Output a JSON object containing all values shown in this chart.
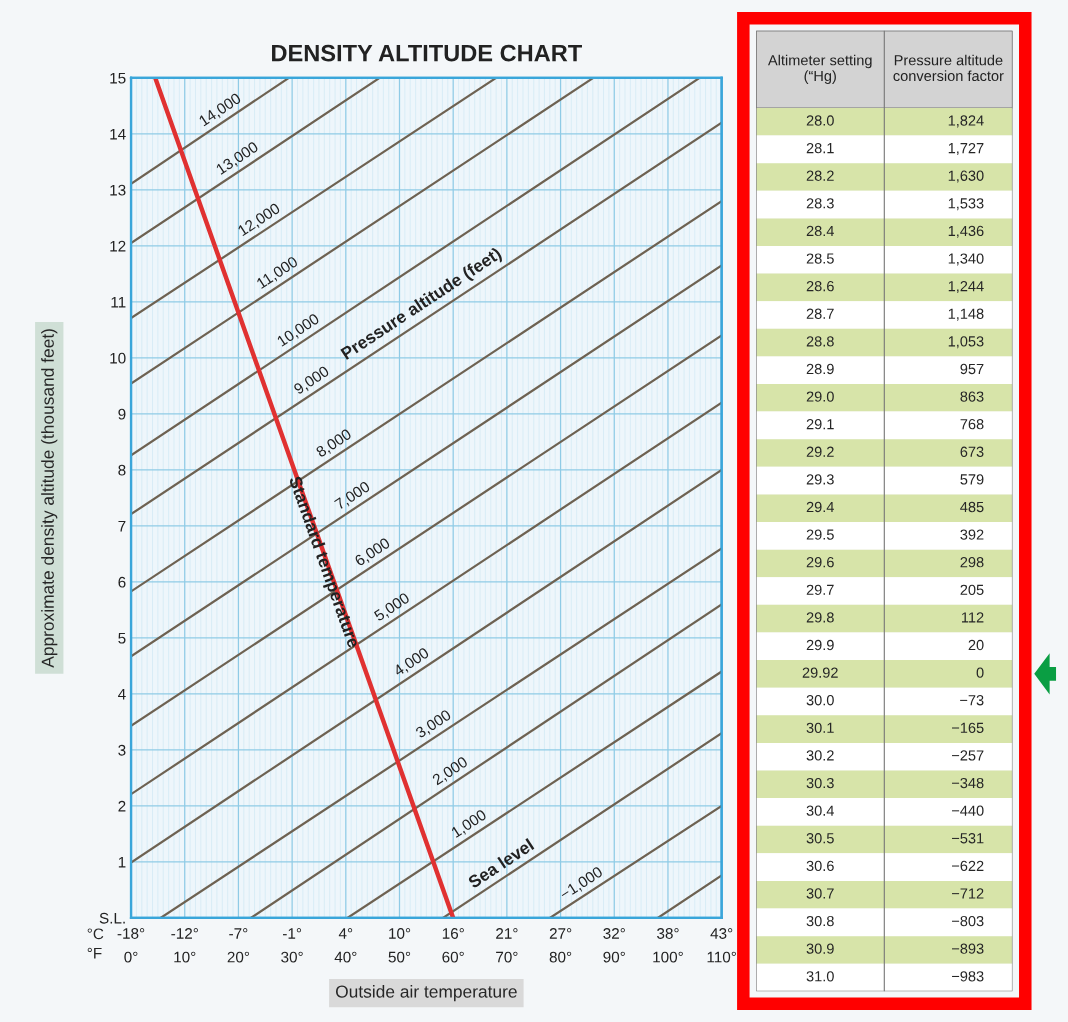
{
  "chart_data": [
    {
      "type": "line",
      "title": "DENSITY ALTITUDE CHART",
      "xlabel": "Outside air temperature",
      "ylabel": "Approximate density altitude (thousand feet)",
      "xlim": [
        0,
        110
      ],
      "ylim": [
        0,
        15
      ],
      "xticks": [
        {
          "value": 0,
          "label": "0°"
        },
        {
          "value": 10,
          "label": "10°"
        },
        {
          "value": 20,
          "label": "20°"
        },
        {
          "value": 30,
          "label": "30°"
        },
        {
          "value": 40,
          "label": "40°"
        },
        {
          "value": 50,
          "label": "50°"
        },
        {
          "value": 60,
          "label": "60°"
        },
        {
          "value": 70,
          "label": "70°"
        },
        {
          "value": 80,
          "label": "80°"
        },
        {
          "value": 90,
          "label": "90°"
        },
        {
          "value": 100,
          "label": "100°"
        },
        {
          "value": 110,
          "label": "110°"
        }
      ],
      "x2lim": [
        -17.78,
        43.33
      ],
      "x2ticks": [
        {
          "value": -17.78,
          "label": "-18°"
        },
        {
          "value": -12.22,
          "label": "-12°"
        },
        {
          "value": -6.67,
          "label": "-7°"
        },
        {
          "value": -1.11,
          "label": "-1°"
        },
        {
          "value": 4.44,
          "label": "4°"
        },
        {
          "value": 10,
          "label": "10°"
        },
        {
          "value": 15.56,
          "label": "16°"
        },
        {
          "value": 21.11,
          "label": "21°"
        },
        {
          "value": 26.67,
          "label": "27°"
        },
        {
          "value": 32.22,
          "label": "32°"
        },
        {
          "value": 37.78,
          "label": "38°"
        },
        {
          "value": 43.33,
          "label": "43°"
        }
      ],
      "yticks": [
        {
          "value": 0,
          "label": "S.L."
        },
        1,
        2,
        3,
        4,
        5,
        6,
        7,
        8,
        9,
        10,
        11,
        12,
        13,
        14,
        15
      ],
      "grid": true,
      "legend": false,
      "marker": "none",
      "line_style": "solid",
      "annotations": [
        "Pressure altitude (feet)",
        "°C",
        "°F"
      ],
      "series": [
        {
          "name": "14,000",
          "color": "#6e6252",
          "x": [
            0,
            29.4
          ],
          "values": [
            13.11,
            15
          ]
        },
        {
          "name": "13,000",
          "color": "#6e6252",
          "x": [
            0,
            46.3
          ],
          "values": [
            12.05,
            15
          ]
        },
        {
          "name": "12,000",
          "color": "#6e6252",
          "x": [
            0,
            68
          ],
          "values": [
            10.71,
            15
          ]
        },
        {
          "name": "11,000",
          "color": "#6e6252",
          "x": [
            0,
            86.1
          ],
          "values": [
            9.54,
            15
          ]
        },
        {
          "name": "10,000",
          "color": "#6e6252",
          "x": [
            0,
            105.9
          ],
          "values": [
            8.26,
            15
          ]
        },
        {
          "name": "9,000",
          "color": "#6e6252",
          "x": [
            0,
            110
          ],
          "values": [
            7.21,
            14.2
          ]
        },
        {
          "name": "8,000",
          "color": "#6e6252",
          "x": [
            0,
            110
          ],
          "values": [
            5.83,
            12.8
          ]
        },
        {
          "name": "7,000",
          "color": "#6e6252",
          "x": [
            0,
            110
          ],
          "values": [
            4.67,
            11.65
          ]
        },
        {
          "name": "6,000",
          "color": "#6e6252",
          "x": [
            0,
            110
          ],
          "values": [
            3.43,
            10.4
          ]
        },
        {
          "name": "5,000",
          "color": "#6e6252",
          "x": [
            0,
            110
          ],
          "values": [
            2.21,
            9.2
          ]
        },
        {
          "name": "4,000",
          "color": "#6e6252",
          "x": [
            0,
            110
          ],
          "values": [
            0.99,
            8.0
          ]
        },
        {
          "name": "3,000",
          "color": "#6e6252",
          "x": [
            5.5,
            110
          ],
          "values": [
            0,
            6.6
          ]
        },
        {
          "name": "2,000",
          "color": "#6e6252",
          "x": [
            22.3,
            110
          ],
          "values": [
            0,
            5.6
          ]
        },
        {
          "name": "1,000",
          "color": "#6e6252",
          "x": [
            40.3,
            110
          ],
          "values": [
            0,
            4.4
          ]
        },
        {
          "name": "Sea level",
          "color": "#6e6252",
          "x": [
            58.1,
            110
          ],
          "values": [
            0,
            3.3
          ]
        },
        {
          "name": "−1,000",
          "color": "#6e6252",
          "x": [
            78,
            110
          ],
          "values": [
            0,
            2.0
          ]
        },
        {
          "color": "#6e6252",
          "x": [
            98.1,
            110
          ],
          "values": [
            0,
            0.76
          ]
        },
        {
          "name": "Standard temperature",
          "color": "#e03131",
          "x": [
            4.5,
            60
          ],
          "values": [
            15,
            0
          ]
        }
      ]
    },
    {
      "type": "other",
      "annotations": [
        "Altimeter setting\n(“Hg)",
        "Pressure altitude\nconversion factor"
      ],
      "categories": [
        "28.0",
        "28.1",
        "28.2",
        "28.3",
        "28.4",
        "28.5",
        "28.6",
        "28.7",
        "28.8",
        "28.9",
        "29.0",
        "29.1",
        "29.2",
        "29.3",
        "29.4",
        "29.5",
        "29.6",
        "29.7",
        "29.8",
        "29.9",
        "29.92",
        "30.0",
        "30.1",
        "30.2",
        "30.3",
        "30.4",
        "30.5",
        "30.6",
        "30.7",
        "30.8",
        "30.9",
        "31.0"
      ],
      "values": [
        1824,
        1727,
        1630,
        1533,
        1436,
        1340,
        1244,
        1148,
        1053,
        957,
        863,
        768,
        673,
        579,
        485,
        392,
        298,
        205,
        112,
        20,
        0,
        -73,
        -165,
        -257,
        -348,
        -440,
        -531,
        -622,
        -712,
        -803,
        -893,
        -983
      ],
      "value_labels": [
        "1,824",
        "1,727",
        "1,630",
        "1,533",
        "1,436",
        "1,340",
        "1,244",
        "1,148",
        "1,053",
        "957",
        "863",
        "768",
        "673",
        "579",
        "485",
        "392",
        "298",
        "205",
        "112",
        "20",
        "0",
        "−73",
        "−165",
        "−257",
        "−348",
        "−440",
        "−531",
        "−622",
        "−712",
        "−803",
        "−893",
        "−983"
      ],
      "colors": [
        "#d7e4a9",
        "#ffffff",
        "#d7e4a9",
        "#ffffff",
        "#d7e4a9",
        "#ffffff",
        "#d7e4a9",
        "#ffffff",
        "#d7e4a9",
        "#ffffff",
        "#d7e4a9",
        "#ffffff",
        "#d7e4a9",
        "#ffffff",
        "#d7e4a9",
        "#ffffff",
        "#d7e4a9",
        "#ffffff",
        "#d7e4a9",
        "#ffffff",
        "#d7e4a9",
        "#ffffff",
        "#d7e4a9",
        "#ffffff",
        "#d7e4a9",
        "#ffffff",
        "#d7e4a9",
        "#ffffff",
        "#d7e4a9",
        "#ffffff",
        "#d7e4a9",
        "#ffffff"
      ]
    }
  ]
}
